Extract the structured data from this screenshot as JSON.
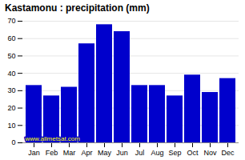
{
  "chart_data": {
    "type": "bar",
    "title": "Kastamonu : precipitation (mm)",
    "categories": [
      "Jan",
      "Feb",
      "Mar",
      "Apr",
      "May",
      "Jun",
      "Jul",
      "Aug",
      "Sep",
      "Oct",
      "Nov",
      "Dec"
    ],
    "values": [
      33,
      27,
      32,
      57,
      68,
      64,
      33,
      33,
      27,
      39,
      29,
      37
    ],
    "color": "#0000cc",
    "ylim": [
      0,
      70
    ],
    "yticks": [
      0,
      10,
      20,
      30,
      40,
      50,
      60,
      70
    ],
    "grid": true,
    "annotations": [
      "www.allmetsat.com"
    ]
  }
}
